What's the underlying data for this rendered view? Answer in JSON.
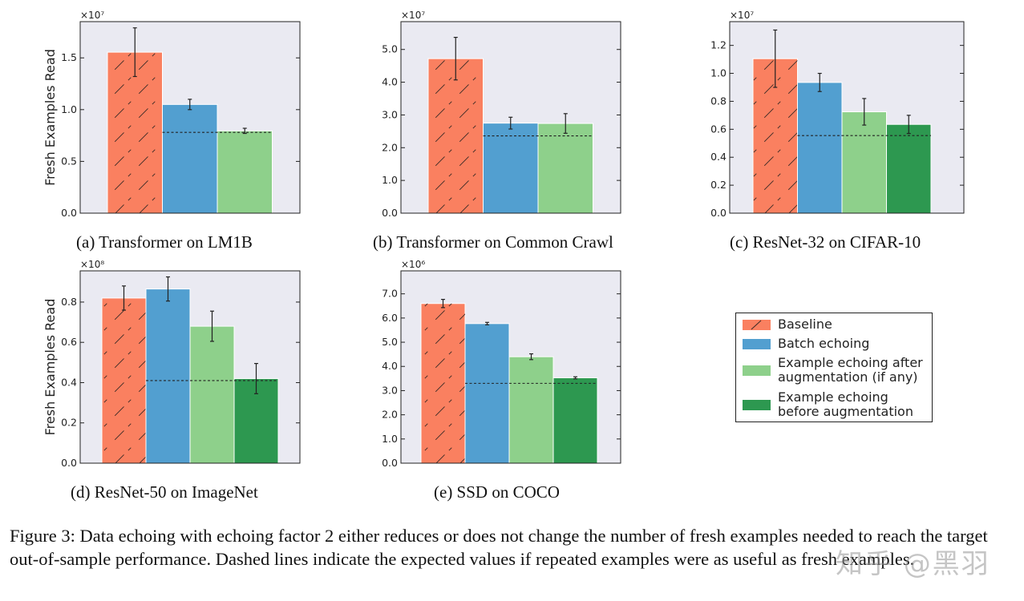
{
  "chart_data": [
    {
      "type": "bar",
      "id": "a",
      "caption": "(a) Transformer on LM1B",
      "ylabel": "Fresh Examples Read",
      "exponent": "×10⁷",
      "ylim": [
        0,
        1.85
      ],
      "yticks": [
        0.0,
        0.5,
        1.0,
        1.5
      ],
      "tick_labels": [
        "0.0",
        "0.5",
        "1.0",
        "1.5"
      ],
      "series_names": [
        "Baseline",
        "Batch echoing",
        "Example echoing after augmentation (if any)"
      ],
      "values": [
        1.555,
        1.05,
        0.795
      ],
      "errors": [
        0.235,
        0.05,
        0.025
      ],
      "dashed_expected": 0.78
    },
    {
      "type": "bar",
      "id": "b",
      "caption": "(b) Transformer on Common Crawl",
      "ylabel": "",
      "exponent": "×10⁷",
      "ylim": [
        0,
        5.85
      ],
      "yticks": [
        0.0,
        1.0,
        2.0,
        3.0,
        4.0,
        5.0
      ],
      "tick_labels": [
        "0.0",
        "1.0",
        "2.0",
        "3.0",
        "4.0",
        "5.0"
      ],
      "series_names": [
        "Baseline",
        "Batch echoing",
        "Example echoing after augmentation (if any)"
      ],
      "values": [
        4.72,
        2.75,
        2.74
      ],
      "errors": [
        0.65,
        0.18,
        0.3
      ],
      "dashed_expected": 2.36
    },
    {
      "type": "bar",
      "id": "c",
      "caption": "(c) ResNet-32 on CIFAR-10",
      "ylabel": "",
      "exponent": "×10⁷",
      "ylim": [
        0,
        1.37
      ],
      "yticks": [
        0.0,
        0.2,
        0.4,
        0.6,
        0.8,
        1.0,
        1.2
      ],
      "tick_labels": [
        "0.0",
        "0.2",
        "0.4",
        "0.6",
        "0.8",
        "1.0",
        "1.2"
      ],
      "series_names": [
        "Baseline",
        "Batch echoing",
        "Example echoing after augmentation (if any)",
        "Example echoing before augmentation"
      ],
      "values": [
        1.105,
        0.935,
        0.725,
        0.635
      ],
      "errors": [
        0.205,
        0.065,
        0.095,
        0.065
      ],
      "dashed_expected": 0.555
    },
    {
      "type": "bar",
      "id": "d",
      "caption": "(d) ResNet-50 on ImageNet",
      "ylabel": "Fresh Examples Read",
      "exponent": "×10⁸",
      "ylim": [
        0,
        0.955
      ],
      "yticks": [
        0.0,
        0.2,
        0.4,
        0.6,
        0.8
      ],
      "tick_labels": [
        "0.0",
        "0.2",
        "0.4",
        "0.6",
        "0.8"
      ],
      "series_names": [
        "Baseline",
        "Batch echoing",
        "Example echoing after augmentation (if any)",
        "Example echoing before augmentation"
      ],
      "values": [
        0.82,
        0.865,
        0.68,
        0.42
      ],
      "errors": [
        0.06,
        0.06,
        0.075,
        0.075
      ],
      "dashed_expected": 0.41
    },
    {
      "type": "bar",
      "id": "e",
      "caption": "(e) SSD on COCO",
      "ylabel": "",
      "exponent": "×10⁶",
      "ylim": [
        0,
        7.95
      ],
      "yticks": [
        0.0,
        1.0,
        2.0,
        3.0,
        4.0,
        5.0,
        6.0,
        7.0
      ],
      "tick_labels": [
        "0.0",
        "1.0",
        "2.0",
        "3.0",
        "4.0",
        "5.0",
        "6.0",
        "7.0"
      ],
      "series_names": [
        "Baseline",
        "Batch echoing",
        "Example echoing after augmentation (if any)",
        "Example echoing before augmentation"
      ],
      "values": [
        6.6,
        5.77,
        4.4,
        3.53
      ],
      "errors": [
        0.17,
        0.05,
        0.12,
        0.04
      ],
      "dashed_expected": 3.3
    }
  ],
  "legend": {
    "items": [
      {
        "label": "Baseline",
        "color": "#fa8060",
        "hatched": true
      },
      {
        "label": "Batch echoing",
        "color": "#529fd0",
        "hatched": false
      },
      {
        "label": "Example echoing after\naugmentation (if any)",
        "color": "#8ed08b",
        "hatched": false
      },
      {
        "label": "Example echoing\nbefore augmentation",
        "color": "#2d9850",
        "hatched": false
      }
    ]
  },
  "colors": {
    "baseline": "#fa8060",
    "batch_echoing": "#529fd0",
    "example_after": "#8ed08b",
    "example_before": "#2d9850",
    "plot_background": "#eaeaf2"
  },
  "figure_caption": "Figure 3: Data echoing with echoing factor 2 either reduces or does not change the number of fresh examples needed to reach the target out-of-sample performance. Dashed lines indicate the expected values if repeated examples were as useful as fresh examples.",
  "watermark": "知乎 @黑羽"
}
